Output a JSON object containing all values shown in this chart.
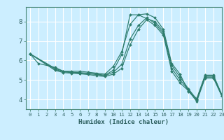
{
  "title": "",
  "xlabel": "Humidex (Indice chaleur)",
  "bg_color": "#cceeff",
  "grid_color": "#ffffff",
  "line_color": "#2e7d6e",
  "xlim": [
    -0.5,
    23
  ],
  "ylim": [
    3.5,
    8.75
  ],
  "yticks": [
    4,
    5,
    6,
    7,
    8
  ],
  "xticks": [
    0,
    1,
    2,
    3,
    4,
    5,
    6,
    7,
    8,
    9,
    10,
    11,
    12,
    13,
    14,
    15,
    16,
    17,
    18,
    19,
    20,
    21,
    22,
    23
  ],
  "series": [
    {
      "x": [
        0,
        1,
        3,
        4,
        5,
        6,
        7,
        8,
        9,
        10,
        11,
        12,
        13,
        14,
        15,
        16,
        17,
        18,
        19,
        20,
        21,
        22,
        23
      ],
      "y": [
        6.35,
        5.85,
        5.65,
        5.45,
        5.45,
        5.45,
        5.4,
        5.35,
        5.3,
        5.7,
        6.45,
        7.85,
        8.35,
        8.4,
        8.2,
        7.6,
        5.85,
        5.3,
        4.4,
        4.05,
        5.25,
        5.25,
        4.25
      ]
    },
    {
      "x": [
        0,
        3,
        4,
        5,
        6,
        7,
        8,
        9,
        10,
        11,
        12,
        13,
        14,
        15,
        16,
        17,
        18,
        19,
        20,
        21,
        22,
        23
      ],
      "y": [
        6.35,
        5.6,
        5.45,
        5.4,
        5.38,
        5.35,
        5.3,
        5.25,
        5.5,
        6.3,
        8.35,
        8.35,
        8.15,
        8.0,
        7.5,
        5.75,
        5.15,
        4.55,
        4.0,
        5.2,
        5.2,
        4.25
      ]
    },
    {
      "x": [
        0,
        3,
        4,
        5,
        6,
        7,
        8,
        9,
        10,
        11,
        12,
        13,
        14,
        15,
        16,
        17,
        18,
        19,
        20,
        21,
        22,
        23
      ],
      "y": [
        6.35,
        5.55,
        5.42,
        5.38,
        5.35,
        5.32,
        5.28,
        5.22,
        5.4,
        5.8,
        7.1,
        7.8,
        8.2,
        7.9,
        7.4,
        5.6,
        5.0,
        4.5,
        3.95,
        5.15,
        5.15,
        4.2
      ]
    },
    {
      "x": [
        0,
        3,
        4,
        5,
        6,
        7,
        8,
        9,
        10,
        11,
        12,
        13,
        14,
        15,
        16,
        17,
        18,
        19,
        20,
        21,
        22,
        23
      ],
      "y": [
        6.35,
        5.5,
        5.38,
        5.35,
        5.32,
        5.28,
        5.22,
        5.18,
        5.3,
        5.6,
        6.8,
        7.6,
        8.1,
        7.8,
        7.3,
        5.45,
        4.85,
        4.45,
        3.9,
        5.1,
        5.1,
        4.18
      ]
    }
  ]
}
